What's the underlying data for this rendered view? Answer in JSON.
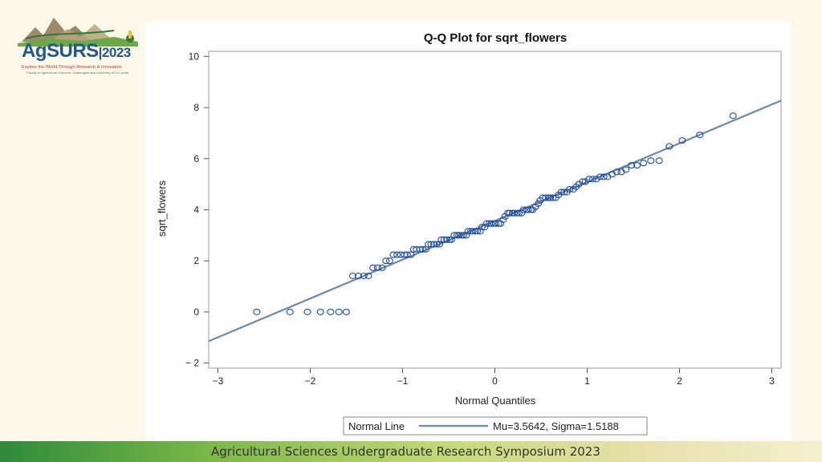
{
  "branding": {
    "logo_name": "AgSURS",
    "logo_year": "2023",
    "logo_tagline": "Explore the World Through Research & Innovation",
    "logo_subtitle": "Faculty of Agricultural Sciences, Sabaragamuwa University of Sri Lanka"
  },
  "footer": {
    "text": "Agricultural Sciences Undergraduate Research Symposium 2023"
  },
  "chart_data": {
    "type": "scatter",
    "title": "Q-Q Plot for sqrt_flowers",
    "xlabel": "Normal Quantiles",
    "ylabel": "sqrt_flowers",
    "xlim": [
      -3.1,
      3.1
    ],
    "ylim": [
      -2.2,
      10.2
    ],
    "x_ticks": [
      -3,
      -2,
      -1,
      0,
      1,
      2,
      3
    ],
    "y_ticks": [
      -2,
      0,
      2,
      4,
      6,
      8,
      10
    ],
    "grid": false,
    "legend": {
      "position": "bottom",
      "label": "Normal Line",
      "text": "Mu=3.5642, Sigma=1.5188"
    },
    "reference_line": {
      "mu": 3.5642,
      "sigma": 1.5188
    },
    "colors": {
      "marker": "#1f4e9c",
      "line": "#6f88a6",
      "axis": "#555555"
    },
    "points": [
      [
        -2.58,
        0.0
      ],
      [
        -2.22,
        0.0
      ],
      [
        -2.03,
        0.0
      ],
      [
        -1.89,
        0.0
      ],
      [
        -1.78,
        0.0
      ],
      [
        -1.69,
        0.0
      ],
      [
        -1.61,
        0.0
      ],
      [
        -1.54,
        1.41
      ],
      [
        -1.48,
        1.41
      ],
      [
        -1.42,
        1.41
      ],
      [
        -1.37,
        1.41
      ],
      [
        -1.32,
        1.73
      ],
      [
        -1.27,
        1.73
      ],
      [
        -1.22,
        1.73
      ],
      [
        -1.18,
        2.0
      ],
      [
        -1.14,
        2.0
      ],
      [
        -1.1,
        2.24
      ],
      [
        -1.06,
        2.24
      ],
      [
        -1.02,
        2.24
      ],
      [
        -0.98,
        2.24
      ],
      [
        -0.95,
        2.24
      ],
      [
        -0.91,
        2.24
      ],
      [
        -0.88,
        2.45
      ],
      [
        -0.85,
        2.45
      ],
      [
        -0.81,
        2.45
      ],
      [
        -0.78,
        2.45
      ],
      [
        -0.75,
        2.45
      ],
      [
        -0.72,
        2.65
      ],
      [
        -0.69,
        2.65
      ],
      [
        -0.66,
        2.65
      ],
      [
        -0.63,
        2.65
      ],
      [
        -0.6,
        2.65
      ],
      [
        -0.58,
        2.83
      ],
      [
        -0.55,
        2.83
      ],
      [
        -0.52,
        2.83
      ],
      [
        -0.49,
        2.83
      ],
      [
        -0.47,
        2.83
      ],
      [
        -0.44,
        3.0
      ],
      [
        -0.41,
        3.0
      ],
      [
        -0.39,
        3.0
      ],
      [
        -0.36,
        3.0
      ],
      [
        -0.34,
        3.0
      ],
      [
        -0.31,
        3.0
      ],
      [
        -0.29,
        3.16
      ],
      [
        -0.26,
        3.16
      ],
      [
        -0.24,
        3.16
      ],
      [
        -0.21,
        3.16
      ],
      [
        -0.19,
        3.16
      ],
      [
        -0.16,
        3.16
      ],
      [
        -0.14,
        3.32
      ],
      [
        -0.11,
        3.32
      ],
      [
        -0.09,
        3.46
      ],
      [
        -0.06,
        3.46
      ],
      [
        -0.04,
        3.46
      ],
      [
        -0.01,
        3.46
      ],
      [
        0.01,
        3.46
      ],
      [
        0.04,
        3.46
      ],
      [
        0.06,
        3.46
      ],
      [
        0.09,
        3.61
      ],
      [
        0.11,
        3.74
      ],
      [
        0.14,
        3.87
      ],
      [
        0.16,
        3.87
      ],
      [
        0.19,
        3.87
      ],
      [
        0.21,
        3.87
      ],
      [
        0.24,
        3.87
      ],
      [
        0.26,
        3.87
      ],
      [
        0.29,
        3.87
      ],
      [
        0.31,
        4.0
      ],
      [
        0.34,
        4.0
      ],
      [
        0.36,
        4.0
      ],
      [
        0.39,
        4.0
      ],
      [
        0.41,
        4.0
      ],
      [
        0.44,
        4.12
      ],
      [
        0.47,
        4.24
      ],
      [
        0.49,
        4.36
      ],
      [
        0.52,
        4.47
      ],
      [
        0.55,
        4.47
      ],
      [
        0.58,
        4.47
      ],
      [
        0.6,
        4.47
      ],
      [
        0.63,
        4.47
      ],
      [
        0.66,
        4.47
      ],
      [
        0.69,
        4.58
      ],
      [
        0.72,
        4.69
      ],
      [
        0.75,
        4.69
      ],
      [
        0.78,
        4.69
      ],
      [
        0.81,
        4.8
      ],
      [
        0.85,
        4.8
      ],
      [
        0.88,
        4.9
      ],
      [
        0.91,
        5.0
      ],
      [
        0.95,
        5.1
      ],
      [
        0.98,
        5.1
      ],
      [
        1.02,
        5.2
      ],
      [
        1.06,
        5.2
      ],
      [
        1.1,
        5.2
      ],
      [
        1.14,
        5.29
      ],
      [
        1.18,
        5.29
      ],
      [
        1.22,
        5.29
      ],
      [
        1.27,
        5.39
      ],
      [
        1.32,
        5.48
      ],
      [
        1.37,
        5.48
      ],
      [
        1.42,
        5.57
      ],
      [
        1.48,
        5.74
      ],
      [
        1.54,
        5.74
      ],
      [
        1.61,
        5.83
      ],
      [
        1.69,
        5.92
      ],
      [
        1.78,
        5.92
      ],
      [
        1.89,
        6.48
      ],
      [
        2.03,
        6.71
      ],
      [
        2.22,
        6.93
      ],
      [
        2.58,
        7.68
      ]
    ]
  }
}
